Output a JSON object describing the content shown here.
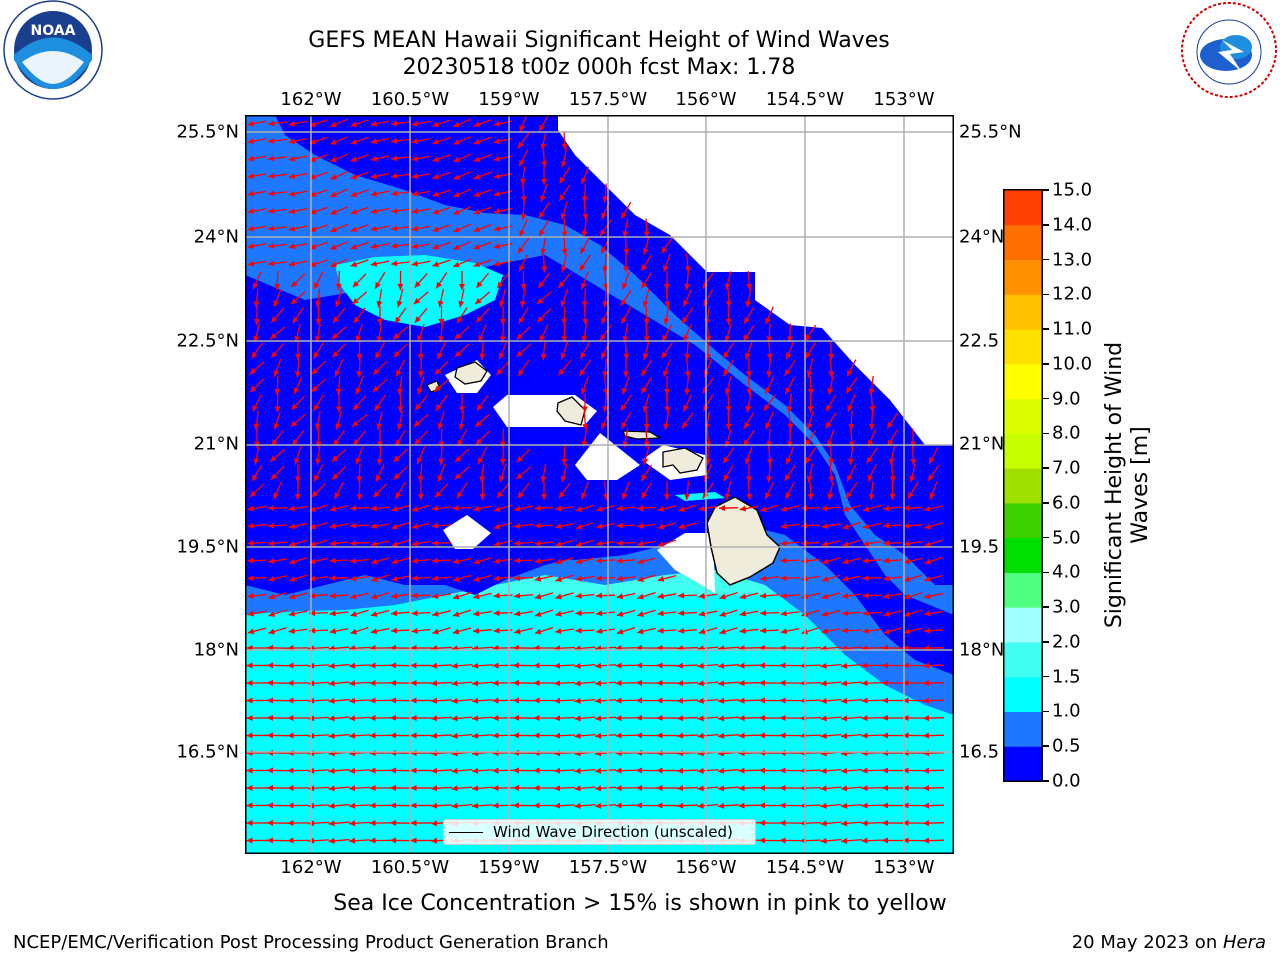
{
  "title_line1": "GEFS MEAN Hawaii Significant Height of Wind Waves",
  "title_line2": "20230518 t00z 000h fcst   Max: 1.78",
  "logos": {
    "left": "NOAA",
    "right": "NATIONAL WEATHER SERVICE"
  },
  "lon_ticks": [
    "162°W",
    "160.5°W",
    "159°W",
    "157.5°W",
    "156°W",
    "154.5°W",
    "153°W"
  ],
  "lat_ticks": [
    "25.5°N",
    "24°N",
    "22.5°N",
    "21°N",
    "19.5°N",
    "18°N",
    "16.5°N"
  ],
  "lat_ticks_right": [
    "25.5°N",
    "24°N",
    "22.5",
    "21°N",
    "19.5",
    "18°N",
    "16.5"
  ],
  "legend_label": "Wind Wave Direction (unscaled)",
  "colorbar": {
    "label": "Significant Height of Wind Waves [m]",
    "ticks": [
      "0.0",
      "0.5",
      "1.0",
      "1.5",
      "2.0",
      "3.0",
      "4.0",
      "5.0",
      "6.0",
      "7.0",
      "8.0",
      "9.0",
      "10.0",
      "11.0",
      "12.0",
      "13.0",
      "14.0",
      "15.0"
    ],
    "colors": [
      "#0000ff",
      "#1e78ff",
      "#00ffff",
      "#40fff0",
      "#a0ffff",
      "#50ff80",
      "#00e000",
      "#40d000",
      "#a0e000",
      "#c8ff00",
      "#dcff00",
      "#ffff00",
      "#ffe000",
      "#ffc000",
      "#ff9000",
      "#ff7000",
      "#ff4000",
      "#ff1000"
    ]
  },
  "sea_ice_note": "Sea Ice Concentration > 15% is shown in pink to yellow",
  "footer_left": "NCEP/EMC/Verification Post Processing Product Generation Branch",
  "footer_right_date": "20 May 2023 on ",
  "footer_right_machine": "Hera",
  "arrow_color": "#ff0000",
  "land_color": "#efecdc"
}
